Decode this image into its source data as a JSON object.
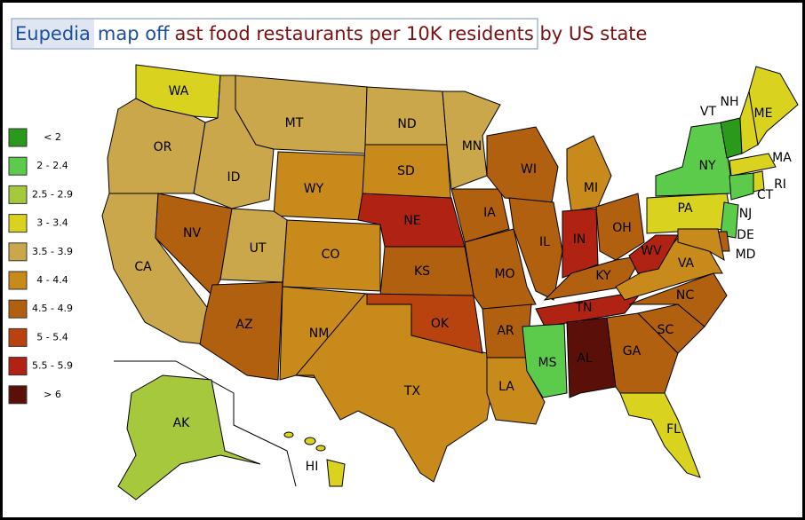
{
  "title": {
    "brand": "Eupedia",
    "prefix": "map of",
    "subject": "fast food restaurants per 10K residents by US state"
  },
  "legend": [
    {
      "label": "< 2",
      "color": "#2b9a1c"
    },
    {
      "label": "2 - 2.4",
      "color": "#5ccb4c"
    },
    {
      "label": "2.5 - 2.9",
      "color": "#a6c83c"
    },
    {
      "label": "3 - 3.4",
      "color": "#d9d31f"
    },
    {
      "label": "3.5 - 3.9",
      "color": "#c9a74a"
    },
    {
      "label": "4 - 4.4",
      "color": "#c88a1b"
    },
    {
      "label": "4.5 - 4.9",
      "color": "#b0600f"
    },
    {
      "label": "5 - 5.4",
      "color": "#b8430f"
    },
    {
      "label": "5.5 - 5.9",
      "color": "#b02211"
    },
    {
      "label": "> 6",
      "color": "#5a1008"
    }
  ],
  "states": [
    {
      "label": "WA",
      "color": "#d9d31f"
    },
    {
      "label": "OR",
      "color": "#c9a74a"
    },
    {
      "label": "CA",
      "color": "#c9a74a"
    },
    {
      "label": "NV",
      "color": "#b0600f"
    },
    {
      "label": "ID",
      "color": "#c9a74a"
    },
    {
      "label": "MT",
      "color": "#c9a74a"
    },
    {
      "label": "WY",
      "color": "#c88a1b"
    },
    {
      "label": "UT",
      "color": "#c9a74a"
    },
    {
      "label": "AZ",
      "color": "#b0600f"
    },
    {
      "label": "CO",
      "color": "#c88a1b"
    },
    {
      "label": "NM",
      "color": "#c88a1b"
    },
    {
      "label": "TX",
      "color": "#c88a1b"
    },
    {
      "label": "ND",
      "color": "#c9a74a"
    },
    {
      "label": "SD",
      "color": "#c88a1b"
    },
    {
      "label": "NE",
      "color": "#b02211"
    },
    {
      "label": "KS",
      "color": "#b0600f"
    },
    {
      "label": "OK",
      "color": "#b8430f"
    },
    {
      "label": "MN",
      "color": "#c9a74a"
    },
    {
      "label": "IA",
      "color": "#b0600f"
    },
    {
      "label": "MO",
      "color": "#b0600f"
    },
    {
      "label": "AR",
      "color": "#b0600f"
    },
    {
      "label": "LA",
      "color": "#c88a1b"
    },
    {
      "label": "WI",
      "color": "#b0600f"
    },
    {
      "label": "IL",
      "color": "#b0600f"
    },
    {
      "label": "MI",
      "color": "#c88a1b"
    },
    {
      "label": "IN",
      "color": "#b02211"
    },
    {
      "label": "OH",
      "color": "#b0600f"
    },
    {
      "label": "KY",
      "color": "#b0600f"
    },
    {
      "label": "TN",
      "color": "#b02211"
    },
    {
      "label": "MS",
      "color": "#5ccb4c"
    },
    {
      "label": "AL",
      "color": "#5a1008"
    },
    {
      "label": "GA",
      "color": "#b0600f"
    },
    {
      "label": "FL",
      "color": "#d9d31f"
    },
    {
      "label": "SC",
      "color": "#b0600f"
    },
    {
      "label": "NC",
      "color": "#b0600f"
    },
    {
      "label": "VA",
      "color": "#c88a1b"
    },
    {
      "label": "WV",
      "color": "#b02211"
    },
    {
      "label": "PA",
      "color": "#d9d31f"
    },
    {
      "label": "NY",
      "color": "#5ccb4c"
    },
    {
      "label": "VT",
      "color": "#2b9a1c"
    },
    {
      "label": "NH",
      "color": "#d9d31f"
    },
    {
      "label": "ME",
      "color": "#d9d31f"
    },
    {
      "label": "MA",
      "color": "#d9d31f"
    },
    {
      "label": "CT",
      "color": "#5ccb4c"
    },
    {
      "label": "RI",
      "color": "#d9d31f"
    },
    {
      "label": "NJ",
      "color": "#5ccb4c"
    },
    {
      "label": "DE",
      "color": "#b0600f"
    },
    {
      "label": "MD",
      "color": "#c88a1b"
    },
    {
      "label": "AK",
      "color": "#a6c83c"
    },
    {
      "label": "HI",
      "color": "#d9d31f"
    }
  ]
}
